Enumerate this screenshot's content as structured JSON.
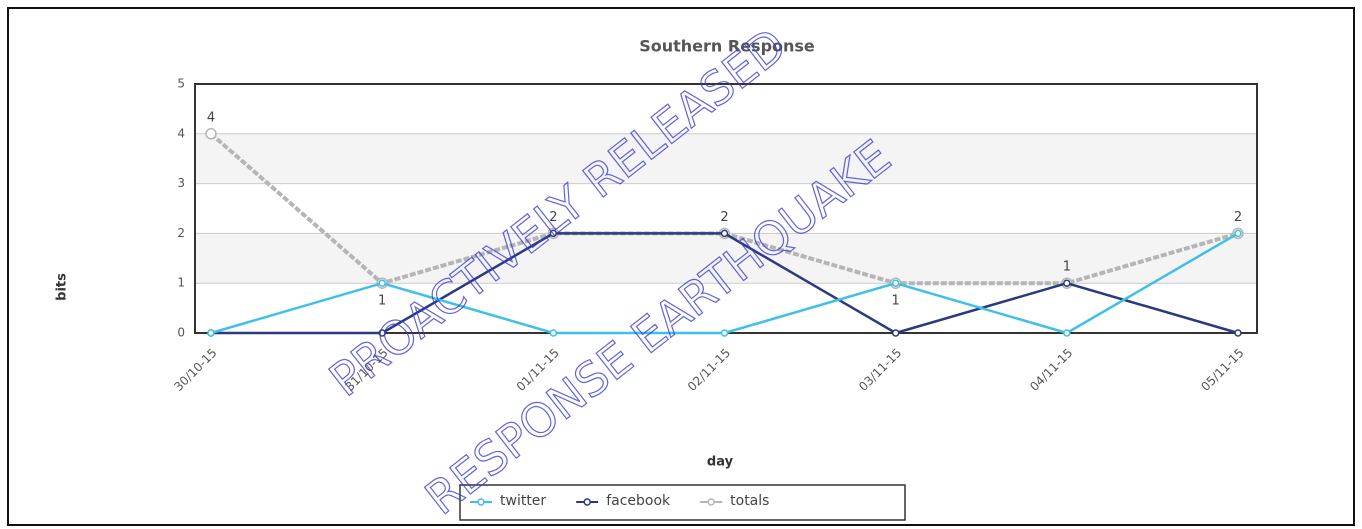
{
  "chart_data": {
    "type": "line",
    "title": "Southern Response",
    "x_label": "day",
    "y_label": "bits",
    "categories": [
      "30/10-15",
      "31/10-15",
      "01/11-15",
      "02/11-15",
      "03/11-15",
      "04/11-15",
      "05/11-15"
    ],
    "series": [
      {
        "name": "twitter",
        "color": "#3ec0e8",
        "values": [
          0,
          1,
          0,
          0,
          1,
          0,
          2
        ]
      },
      {
        "name": "facebook",
        "color": "#2b3a7f",
        "values": [
          0,
          0,
          2,
          2,
          0,
          1,
          0
        ]
      },
      {
        "name": "totals",
        "color": "#b5b5b5",
        "values": [
          4,
          1,
          2,
          2,
          1,
          1,
          2
        ]
      }
    ],
    "ylim": [
      0,
      5
    ],
    "yticks": [
      0,
      1,
      2,
      3,
      4,
      5
    ],
    "grid": true,
    "annotations": [
      "PROACTIVELY RELEASED",
      "RESPONSE EARTHQUAKE"
    ]
  }
}
